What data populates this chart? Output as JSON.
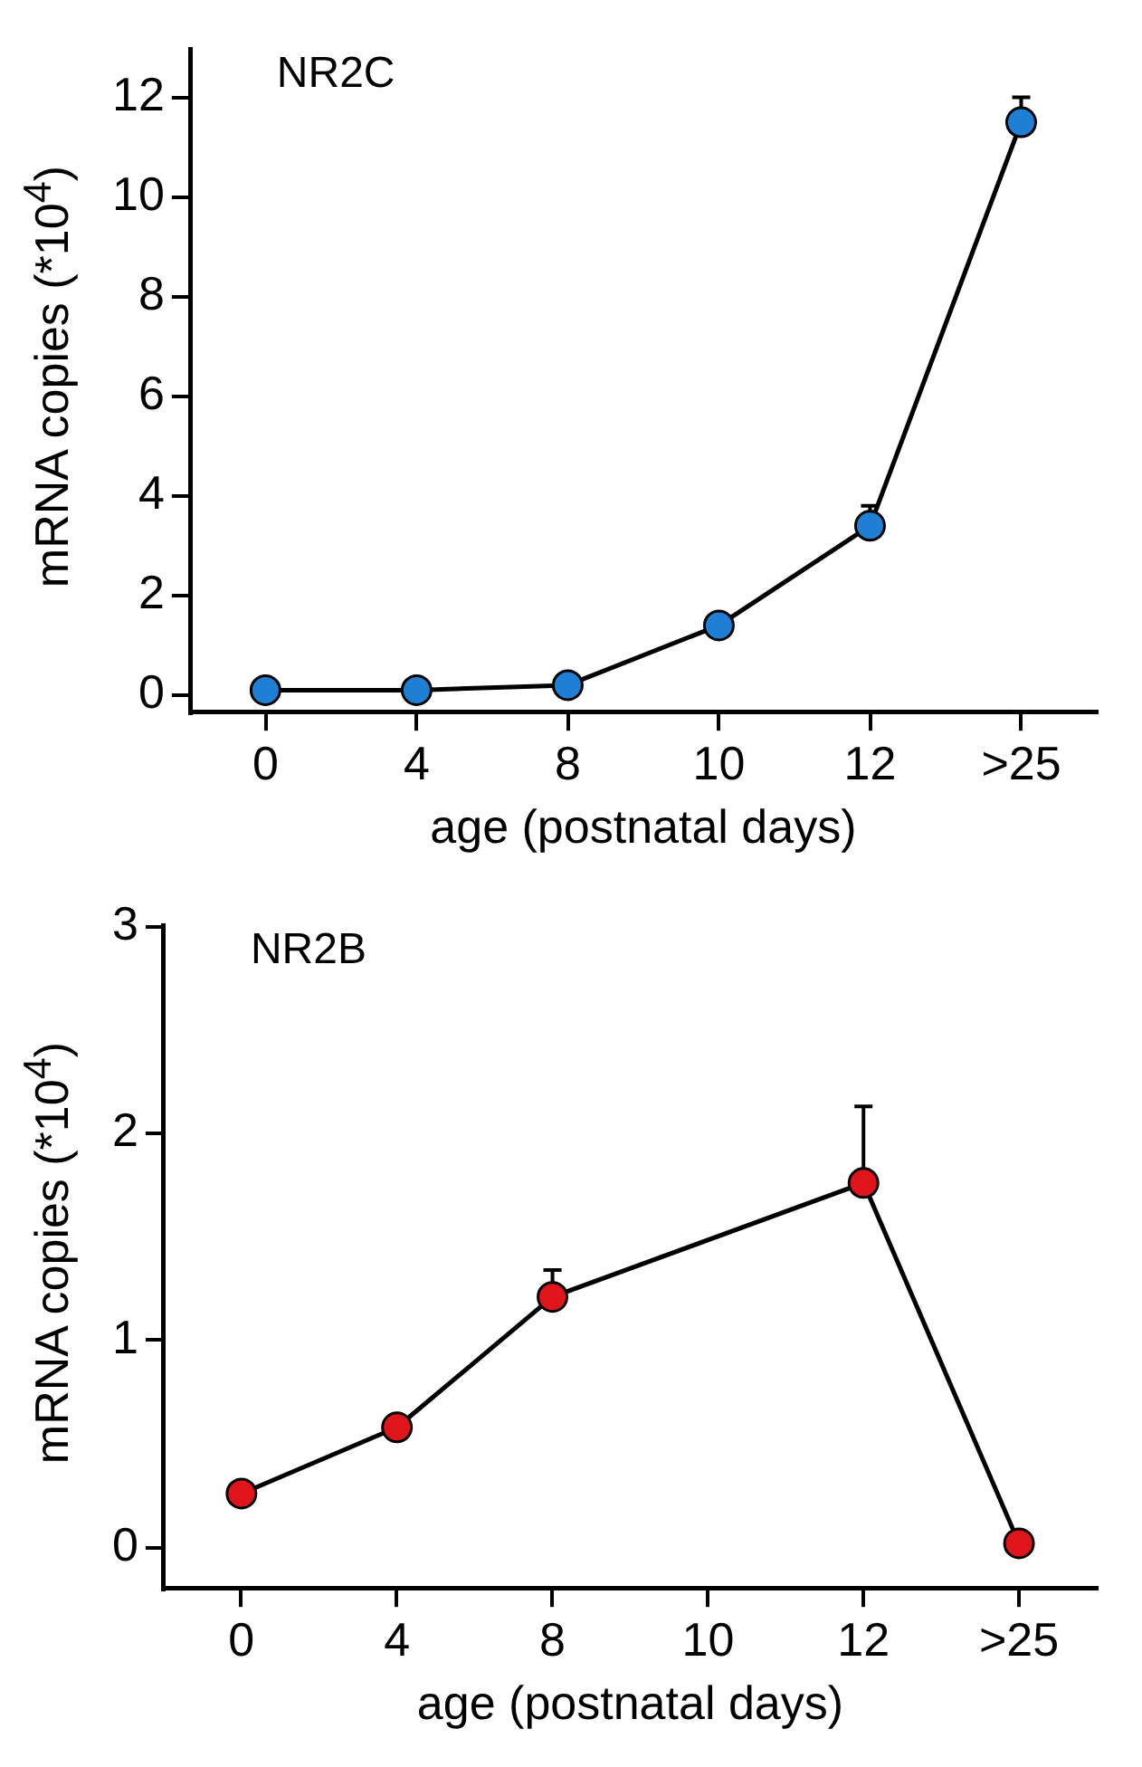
{
  "chart_data": [
    {
      "type": "line",
      "title": "NR2C",
      "xlabel": "age (postnatal days)",
      "ylabel": "mRNA copies (*10$^{4}$)",
      "categories": [
        "0",
        "4",
        "8",
        "10",
        "12",
        ">25"
      ],
      "series": [
        {
          "color": "#1f7fd4",
          "values": [
            0.1,
            0.1,
            0.2,
            1.4,
            3.4,
            11.5
          ],
          "errors": [
            null,
            null,
            null,
            null,
            [
              3.4,
              3.8
            ],
            [
              11.5,
              12.0
            ]
          ]
        }
      ],
      "ylim": [
        -0.35,
        12.95
      ],
      "yticks": [
        0,
        2,
        4,
        6,
        8,
        10,
        12
      ],
      "grid": false,
      "legend": false,
      "marker": "circle",
      "line_style": "solid"
    },
    {
      "type": "line",
      "title": "NR2B",
      "xlabel": "age (postnatal days)",
      "ylabel": "mRNA copies (*10$^{4}$)",
      "categories": [
        "0",
        "4",
        "8",
        "10",
        "12",
        ">25"
      ],
      "series": [
        {
          "color": "#e0141b",
          "values": [
            0.26,
            0.58,
            1.21,
            null,
            1.76,
            0.02
          ],
          "errors": [
            null,
            null,
            [
              1.21,
              1.34
            ],
            null,
            [
              1.76,
              2.13
            ],
            null
          ]
        }
      ],
      "ylim": [
        -0.2,
        3
      ],
      "yticks": [
        0,
        1,
        2,
        3
      ],
      "grid": false,
      "legend": false,
      "marker": "circle",
      "line_style": "solid"
    }
  ]
}
